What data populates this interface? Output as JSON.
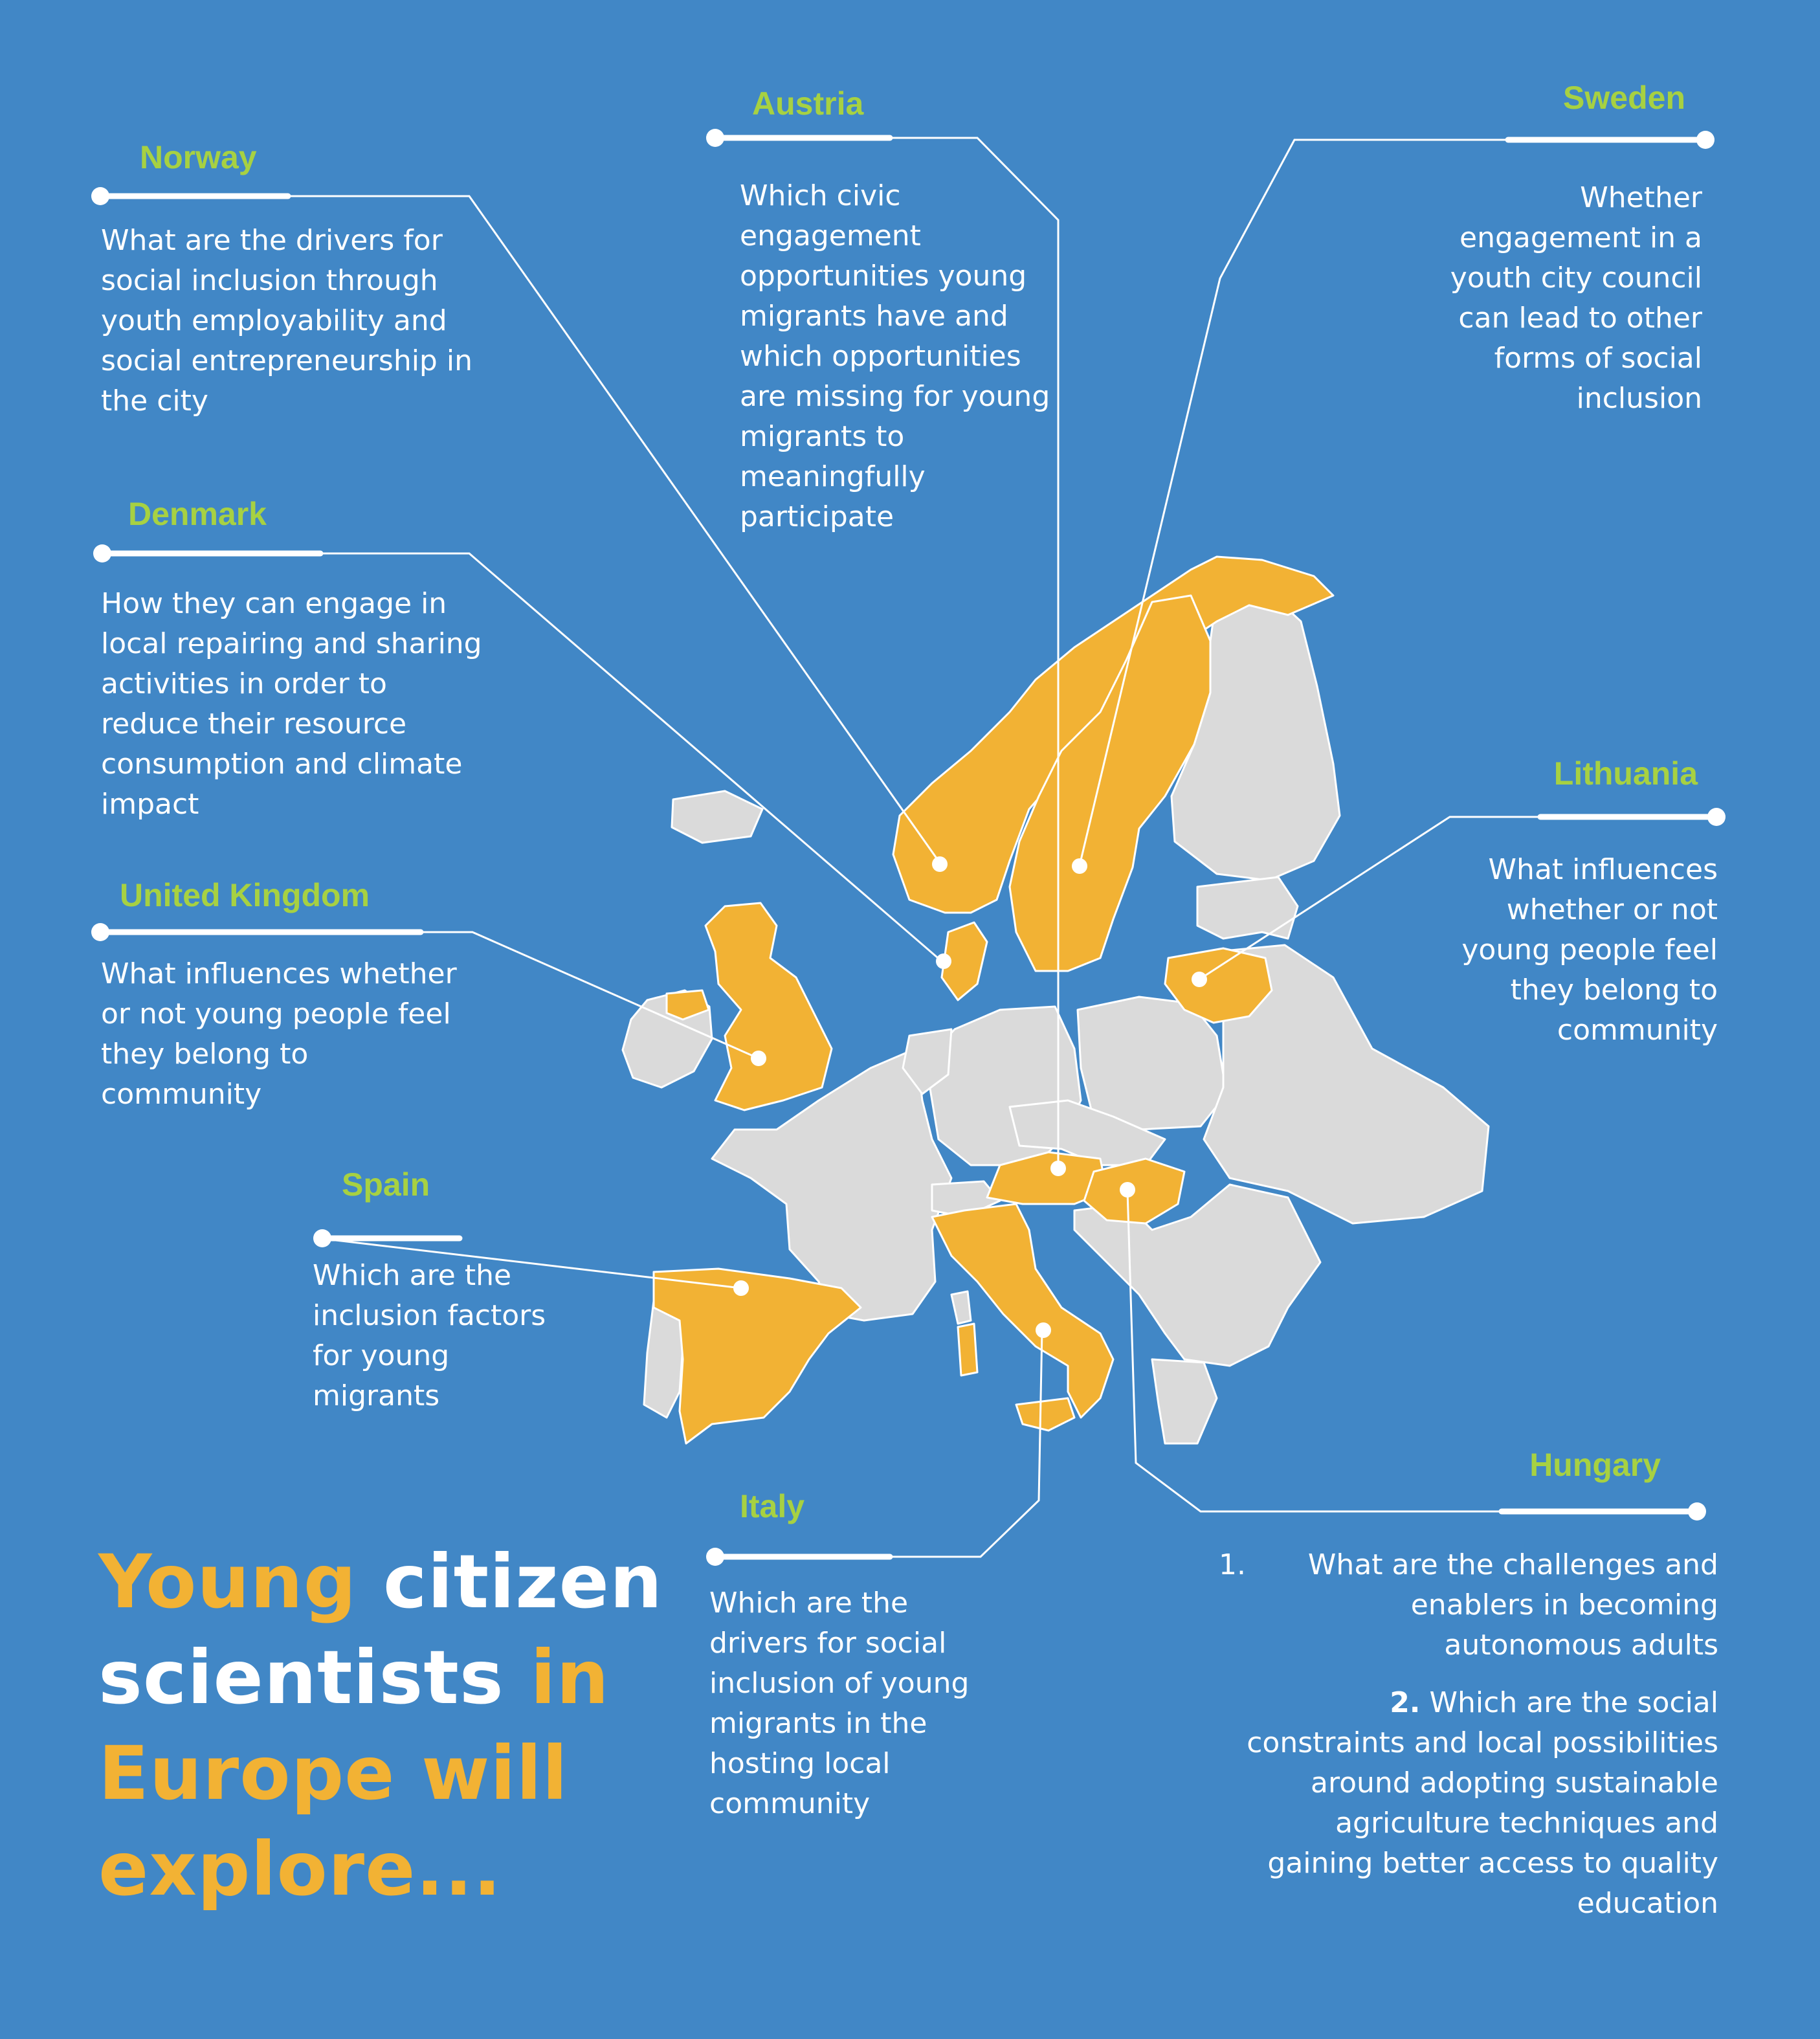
{
  "colors": {
    "background": "#4187c6",
    "highlighted_country": "#f2b234",
    "other_country": "#dadada",
    "country_name": "#a7d142",
    "text": "#ffffff"
  },
  "headline": {
    "part_1": "Young",
    "part_2": "citizen scientists",
    "part_3": "in Europe will explore..."
  },
  "countries": {
    "norway": {
      "name": "Norway",
      "question": "What are the drivers for social inclusion through youth employability and social entrepreneurship in the city"
    },
    "denmark": {
      "name": "Denmark",
      "question": "How they can engage in local repairing and sharing activities in order to reduce their resource consumption and climate impact"
    },
    "united_kingdom": {
      "name": "United Kingdom",
      "question": "What influences whether or not young people feel they belong to community"
    },
    "spain": {
      "name": "Spain",
      "question": "Which are the inclusion factors for young migrants"
    },
    "austria": {
      "name": "Austria",
      "question": "Which civic engagement opportunities young migrants have and which opportunities are missing for young migrants to meaningfully participate"
    },
    "sweden": {
      "name": "Sweden",
      "question": "Whether engagement in a youth city council can lead to other forms of social inclusion"
    },
    "lithuania": {
      "name": "Lithuania",
      "question": "What influences whether or not young people feel they belong to community"
    },
    "italy": {
      "name": "Italy",
      "question": "Which are the drivers for social inclusion of young migrants in the hosting local community"
    },
    "hungary": {
      "name": "Hungary",
      "q1_number": "1.",
      "q1_text": "What are the challenges and enablers in becoming autonomous adults",
      "q2_number": "2.",
      "q2_text": "Which are the social constraints and local possibilities around adopting sustainable agriculture techniques and gaining better access to quality education"
    }
  }
}
